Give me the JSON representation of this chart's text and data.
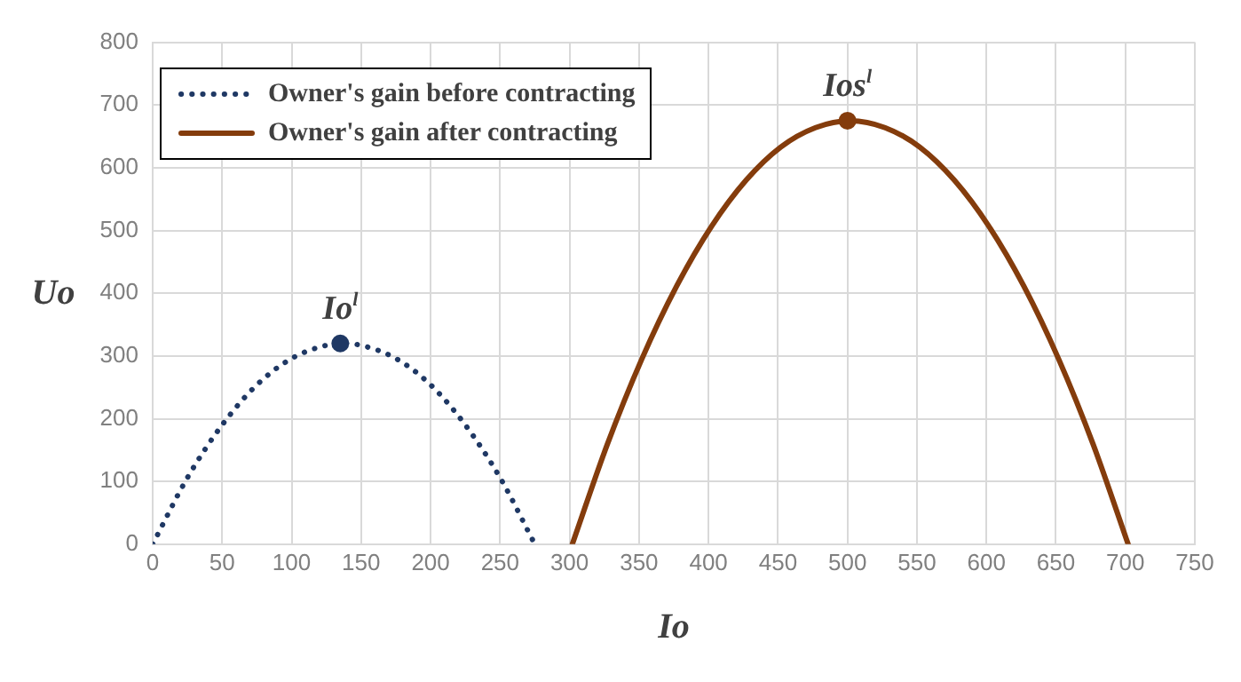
{
  "chart_data": {
    "type": "line",
    "xlabel": "Io",
    "ylabel": "Uo",
    "series": [
      {
        "name": "Owner's gain before contracting",
        "color": "#1f3864",
        "line_style": "dotted",
        "x": [
          0,
          25,
          50,
          75,
          100,
          125,
          137.5,
          150,
          175,
          200,
          225,
          250,
          275
        ],
        "values": [
          0,
          106,
          190,
          254,
          296,
          317,
          320,
          317,
          296,
          254,
          190,
          106,
          0
        ]
      },
      {
        "name": "Owner's gain after contracting",
        "color": "#843c0c",
        "line_style": "solid",
        "x": [
          302,
          327,
          352,
          377,
          402,
          427,
          452,
          477,
          502,
          527,
          552,
          577,
          602,
          627,
          652,
          677,
          702
        ],
        "values": [
          0,
          158,
          295,
          411,
          506,
          580,
          633,
          664,
          675,
          664,
          633,
          580,
          506,
          411,
          295,
          158,
          0
        ]
      },
      {
        "type": "scatter",
        "color": "#1f3864",
        "x": [
          135
        ],
        "values": [
          320
        ]
      },
      {
        "type": "scatter",
        "color": "#843c0c",
        "x": [
          500
        ],
        "values": [
          675
        ]
      }
    ],
    "annotations": [
      {
        "text": "Io$^{l}$",
        "x": 135,
        "y": 320
      },
      {
        "text": "Ios$^{l}$",
        "x": 500,
        "y": 675
      }
    ],
    "xlim": [
      0,
      750
    ],
    "xticks": [
      0,
      50,
      100,
      150,
      200,
      250,
      300,
      350,
      400,
      450,
      500,
      550,
      600,
      650,
      700,
      750
    ],
    "ylim": [
      0,
      800
    ],
    "yticks": [
      0,
      100,
      200,
      300,
      400,
      500,
      600,
      700,
      800
    ],
    "grid": true,
    "legend": "top left"
  }
}
